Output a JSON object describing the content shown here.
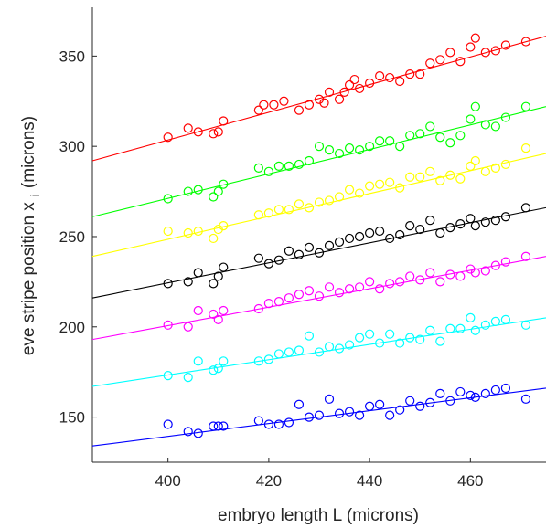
{
  "chart_data": {
    "type": "scatter",
    "title": "",
    "xlabel": "embryo length L (microns)",
    "ylabel": "eve stripe position x i (microns)",
    "ylabel_main": "eve stripe position x",
    "ylabel_subscript": "i",
    "ylabel_suffix": "(microns)",
    "xlim": [
      385,
      475
    ],
    "ylim": [
      125,
      377
    ],
    "xticks": [
      "400",
      "420",
      "440",
      "460"
    ],
    "yticks": [
      "150",
      "200",
      "250",
      "300",
      "350"
    ],
    "grid": false,
    "legend": "none",
    "series": [
      {
        "color": "#ff0000",
        "fit": {
          "x": [
            385,
            475
          ],
          "y": [
            292,
            361
          ]
        },
        "points": [
          [
            400,
            305
          ],
          [
            404,
            310
          ],
          [
            406,
            308
          ],
          [
            409,
            307
          ],
          [
            410,
            308
          ],
          [
            411,
            314
          ],
          [
            418,
            320
          ],
          [
            419,
            323
          ],
          [
            421,
            323
          ],
          [
            423,
            325
          ],
          [
            426,
            320
          ],
          [
            428,
            323
          ],
          [
            430,
            326
          ],
          [
            431,
            324
          ],
          [
            432,
            330
          ],
          [
            434,
            326
          ],
          [
            435,
            330
          ],
          [
            436,
            334
          ],
          [
            437,
            337
          ],
          [
            438,
            332
          ],
          [
            440,
            335
          ],
          [
            442,
            339
          ],
          [
            444,
            338
          ],
          [
            446,
            336
          ],
          [
            448,
            340
          ],
          [
            450,
            340
          ],
          [
            452,
            346
          ],
          [
            454,
            348
          ],
          [
            456,
            352
          ],
          [
            458,
            347
          ],
          [
            460,
            355
          ],
          [
            461,
            360
          ],
          [
            463,
            352
          ],
          [
            465,
            353
          ],
          [
            467,
            356
          ],
          [
            471,
            358
          ]
        ]
      },
      {
        "color": "#00ff00",
        "fit": {
          "x": [
            385,
            475
          ],
          "y": [
            261,
            322
          ]
        },
        "points": [
          [
            400,
            271
          ],
          [
            404,
            275
          ],
          [
            406,
            276
          ],
          [
            409,
            272
          ],
          [
            410,
            275
          ],
          [
            411,
            279
          ],
          [
            418,
            288
          ],
          [
            420,
            286
          ],
          [
            422,
            289
          ],
          [
            424,
            289
          ],
          [
            426,
            290
          ],
          [
            428,
            292
          ],
          [
            430,
            300
          ],
          [
            432,
            298
          ],
          [
            434,
            296
          ],
          [
            436,
            299
          ],
          [
            438,
            298
          ],
          [
            440,
            300
          ],
          [
            442,
            303
          ],
          [
            444,
            303
          ],
          [
            446,
            300
          ],
          [
            448,
            306
          ],
          [
            450,
            307
          ],
          [
            452,
            311
          ],
          [
            454,
            305
          ],
          [
            456,
            302
          ],
          [
            458,
            306
          ],
          [
            460,
            315
          ],
          [
            461,
            322
          ],
          [
            463,
            312
          ],
          [
            465,
            311
          ],
          [
            467,
            316
          ],
          [
            471,
            322
          ]
        ]
      },
      {
        "color": "#ffff00",
        "fit": {
          "x": [
            385,
            475
          ],
          "y": [
            239,
            296
          ]
        },
        "points": [
          [
            400,
            253
          ],
          [
            404,
            252
          ],
          [
            406,
            253
          ],
          [
            409,
            249
          ],
          [
            410,
            254
          ],
          [
            411,
            256
          ],
          [
            418,
            262
          ],
          [
            420,
            263
          ],
          [
            422,
            265
          ],
          [
            424,
            265
          ],
          [
            426,
            268
          ],
          [
            428,
            266
          ],
          [
            430,
            269
          ],
          [
            432,
            270
          ],
          [
            434,
            272
          ],
          [
            436,
            276
          ],
          [
            438,
            274
          ],
          [
            440,
            278
          ],
          [
            442,
            279
          ],
          [
            444,
            280
          ],
          [
            446,
            277
          ],
          [
            448,
            283
          ],
          [
            450,
            283
          ],
          [
            452,
            286
          ],
          [
            454,
            281
          ],
          [
            456,
            284
          ],
          [
            458,
            282
          ],
          [
            460,
            289
          ],
          [
            461,
            292
          ],
          [
            463,
            286
          ],
          [
            465,
            288
          ],
          [
            467,
            290
          ],
          [
            471,
            299
          ]
        ]
      },
      {
        "color": "#000000",
        "fit": {
          "x": [
            385,
            475
          ],
          "y": [
            216,
            266
          ]
        },
        "points": [
          [
            400,
            224
          ],
          [
            404,
            225
          ],
          [
            406,
            230
          ],
          [
            409,
            224
          ],
          [
            410,
            228
          ],
          [
            411,
            233
          ],
          [
            418,
            238
          ],
          [
            420,
            235
          ],
          [
            422,
            237
          ],
          [
            424,
            242
          ],
          [
            426,
            240
          ],
          [
            428,
            244
          ],
          [
            430,
            241
          ],
          [
            432,
            245
          ],
          [
            434,
            247
          ],
          [
            436,
            249
          ],
          [
            438,
            250
          ],
          [
            440,
            252
          ],
          [
            442,
            253
          ],
          [
            444,
            249
          ],
          [
            446,
            251
          ],
          [
            448,
            256
          ],
          [
            450,
            254
          ],
          [
            452,
            259
          ],
          [
            454,
            252
          ],
          [
            456,
            255
          ],
          [
            458,
            257
          ],
          [
            460,
            260
          ],
          [
            461,
            256
          ],
          [
            463,
            258
          ],
          [
            465,
            259
          ],
          [
            467,
            261
          ],
          [
            471,
            266
          ]
        ]
      },
      {
        "color": "#ff00ff",
        "fit": {
          "x": [
            385,
            475
          ],
          "y": [
            193,
            239
          ]
        },
        "points": [
          [
            400,
            201
          ],
          [
            404,
            200
          ],
          [
            406,
            209
          ],
          [
            409,
            207
          ],
          [
            410,
            204
          ],
          [
            411,
            209
          ],
          [
            418,
            210
          ],
          [
            420,
            213
          ],
          [
            422,
            214
          ],
          [
            424,
            216
          ],
          [
            426,
            218
          ],
          [
            428,
            220
          ],
          [
            430,
            217
          ],
          [
            432,
            222
          ],
          [
            434,
            219
          ],
          [
            436,
            221
          ],
          [
            438,
            222
          ],
          [
            440,
            225
          ],
          [
            442,
            221
          ],
          [
            444,
            224
          ],
          [
            446,
            225
          ],
          [
            448,
            228
          ],
          [
            450,
            226
          ],
          [
            452,
            230
          ],
          [
            454,
            225
          ],
          [
            456,
            229
          ],
          [
            458,
            228
          ],
          [
            460,
            232
          ],
          [
            461,
            230
          ],
          [
            463,
            231
          ],
          [
            465,
            234
          ],
          [
            467,
            236
          ],
          [
            471,
            239
          ]
        ]
      },
      {
        "color": "#00ffff",
        "fit": {
          "x": [
            385,
            475
          ],
          "y": [
            167,
            205
          ]
        },
        "points": [
          [
            400,
            173
          ],
          [
            404,
            172
          ],
          [
            406,
            181
          ],
          [
            409,
            176
          ],
          [
            410,
            177
          ],
          [
            411,
            181
          ],
          [
            418,
            181
          ],
          [
            420,
            182
          ],
          [
            422,
            185
          ],
          [
            424,
            186
          ],
          [
            426,
            187
          ],
          [
            428,
            195
          ],
          [
            430,
            186
          ],
          [
            432,
            189
          ],
          [
            434,
            188
          ],
          [
            436,
            190
          ],
          [
            438,
            194
          ],
          [
            440,
            196
          ],
          [
            442,
            191
          ],
          [
            444,
            196
          ],
          [
            446,
            191
          ],
          [
            448,
            194
          ],
          [
            450,
            193
          ],
          [
            452,
            198
          ],
          [
            454,
            192
          ],
          [
            456,
            199
          ],
          [
            458,
            199
          ],
          [
            460,
            205
          ],
          [
            461,
            198
          ],
          [
            463,
            201
          ],
          [
            465,
            203
          ],
          [
            467,
            204
          ],
          [
            471,
            201
          ]
        ]
      },
      {
        "color": "#0000ff",
        "fit": {
          "x": [
            385,
            475
          ],
          "y": [
            134,
            166
          ]
        },
        "points": [
          [
            400,
            146
          ],
          [
            404,
            142
          ],
          [
            406,
            141
          ],
          [
            409,
            145
          ],
          [
            410,
            145
          ],
          [
            411,
            145
          ],
          [
            418,
            148
          ],
          [
            420,
            146
          ],
          [
            422,
            146
          ],
          [
            424,
            147
          ],
          [
            426,
            157
          ],
          [
            428,
            150
          ],
          [
            430,
            151
          ],
          [
            432,
            160
          ],
          [
            434,
            152
          ],
          [
            436,
            153
          ],
          [
            438,
            151
          ],
          [
            440,
            156
          ],
          [
            442,
            157
          ],
          [
            444,
            151
          ],
          [
            446,
            154
          ],
          [
            448,
            159
          ],
          [
            450,
            156
          ],
          [
            452,
            158
          ],
          [
            454,
            163
          ],
          [
            456,
            159
          ],
          [
            458,
            164
          ],
          [
            460,
            162
          ],
          [
            461,
            161
          ],
          [
            463,
            163
          ],
          [
            465,
            165
          ],
          [
            467,
            166
          ],
          [
            471,
            160
          ]
        ]
      }
    ]
  }
}
